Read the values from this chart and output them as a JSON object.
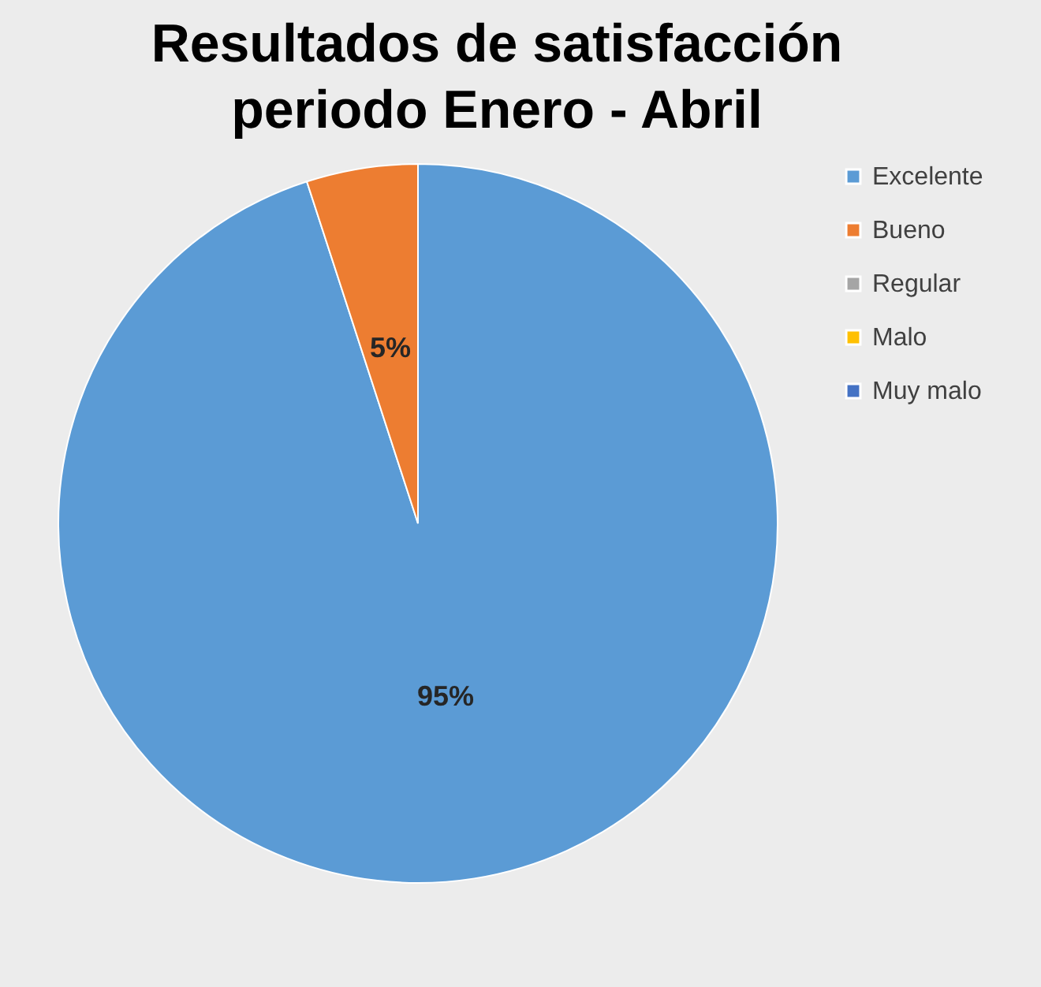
{
  "chart_data": {
    "type": "pie",
    "title": "Resultados de satisfacción periodo Enero - Abril",
    "categories": [
      "Excelente",
      "Bueno",
      "Regular",
      "Malo",
      "Muy malo"
    ],
    "values": [
      95,
      5,
      0,
      0,
      0
    ],
    "colors": [
      "#5b9bd5",
      "#ed7d31",
      "#a5a5a5",
      "#ffc000",
      "#4472c4"
    ],
    "value_labels": [
      "95%",
      "5%",
      null,
      null,
      null
    ],
    "legend": "right"
  }
}
